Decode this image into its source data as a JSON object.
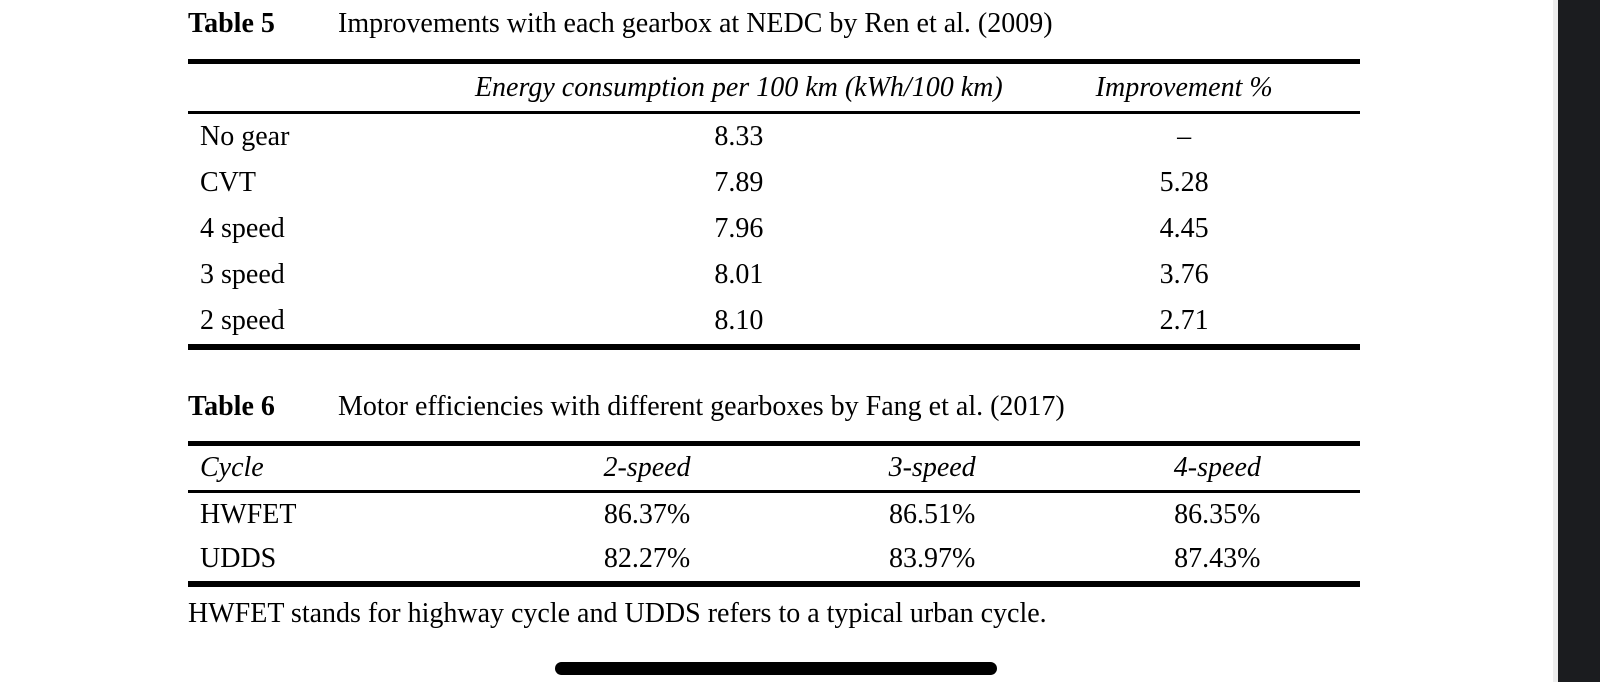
{
  "table5": {
    "label": "Table 5",
    "caption": "Improvements with each gearbox at NEDC by Ren et al. (2009)",
    "headers": [
      "",
      "Energy consumption per 100 km (kWh/100 km)",
      "Improvement %"
    ],
    "rows": [
      [
        "No gear",
        "8.33",
        "–"
      ],
      [
        "CVT",
        "7.89",
        "5.28"
      ],
      [
        "4 speed",
        "7.96",
        "4.45"
      ],
      [
        "3 speed",
        "8.01",
        "3.76"
      ],
      [
        "2 speed",
        "8.10",
        "2.71"
      ]
    ]
  },
  "table6": {
    "label": "Table 6",
    "caption": "Motor efficiencies with different gearboxes by Fang et al. (2017)",
    "headers": [
      "Cycle",
      "2-speed",
      "3-speed",
      "4-speed"
    ],
    "rows": [
      [
        "HWFET",
        "86.37%",
        "86.51%",
        "86.35%"
      ],
      [
        "UDDS",
        "82.27%",
        "83.97%",
        "87.43%"
      ]
    ]
  },
  "footnote": "HWFET stands for highway cycle and UDDS refers to a typical urban cycle.",
  "colors": {
    "page_background": "#ffffff",
    "text": "#000000",
    "right_strip": "#1b1c1f"
  }
}
